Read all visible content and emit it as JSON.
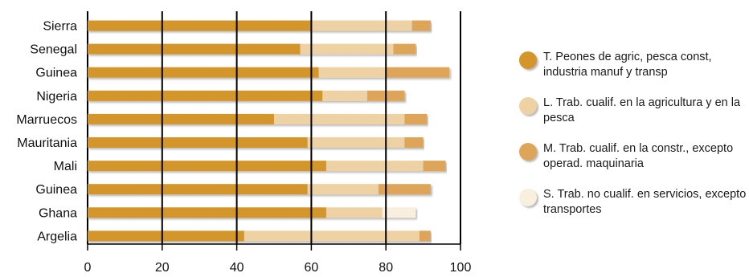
{
  "chart_data": {
    "type": "bar",
    "orientation": "horizontal",
    "stacked": true,
    "categories": [
      "Sierra",
      "Senegal",
      "Guinea",
      "Nigeria",
      "Marruecos",
      "Mauritania",
      "Mali",
      "Guinea",
      "Ghana",
      "Argelia"
    ],
    "series": [
      {
        "name": "T. Peones de agric, pesca const, industria manuf y transp",
        "color": "#d4962a",
        "values": [
          60,
          57,
          62,
          63,
          50,
          59,
          64,
          59,
          64,
          42
        ]
      },
      {
        "name": "L. Trab. cualif. en la agricultura y en la pesca",
        "color": "#efd2a4",
        "values": [
          27,
          25,
          18,
          12,
          35,
          26,
          26,
          19,
          15,
          47
        ]
      },
      {
        "name": "M. Trab. cualif. en la constr., excepto operad. maquinaria",
        "color": "#dea458",
        "values": [
          5,
          6,
          17,
          10,
          6,
          5,
          6,
          14,
          0,
          3
        ]
      },
      {
        "name": "S. Trab. no cualif. en servicios, excepto transportes",
        "color": "#f8efdf",
        "values": [
          0,
          0,
          0,
          0,
          0,
          0,
          0,
          0,
          9,
          0
        ]
      }
    ],
    "xlim": [
      0,
      100
    ],
    "xticks": [
      0,
      20,
      40,
      60,
      80,
      100
    ],
    "grid": "vertical",
    "legend_position": "right"
  }
}
